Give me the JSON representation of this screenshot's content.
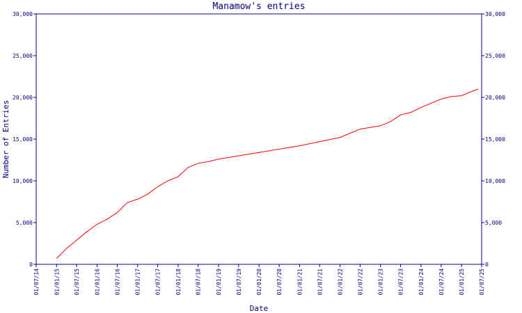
{
  "chart_data": {
    "type": "line",
    "title": "Manamow's entries",
    "xlabel": "Date",
    "ylabel": "Number of Entries",
    "ylim": [
      0,
      30000
    ],
    "y_ticks": [
      0,
      5000,
      10000,
      15000,
      20000,
      25000,
      30000
    ],
    "y_tick_labels": [
      "0",
      "5,000",
      "10,000",
      "15,000",
      "20,000",
      "25,000",
      "30,000"
    ],
    "xlim": [
      "2014-07-01",
      "2025-07-01"
    ],
    "x_ticks": [
      "2014-07-01",
      "2015-01-01",
      "2015-07-01",
      "2016-01-01",
      "2016-07-01",
      "2017-01-01",
      "2017-07-01",
      "2018-01-01",
      "2018-07-01",
      "2019-01-01",
      "2019-07-01",
      "2020-01-01",
      "2020-07-01",
      "2021-01-01",
      "2021-07-01",
      "2022-01-01",
      "2022-07-01",
      "2023-01-01",
      "2023-07-01",
      "2024-01-01",
      "2024-07-01",
      "2025-01-01",
      "2025-07-01"
    ],
    "x_tick_labels": [
      "01/07/14",
      "01/01/15",
      "01/07/15",
      "01/01/16",
      "01/07/16",
      "01/01/17",
      "01/07/17",
      "01/01/18",
      "01/07/18",
      "01/01/19",
      "01/07/19",
      "01/01/20",
      "01/07/20",
      "01/01/21",
      "01/07/21",
      "01/01/22",
      "01/07/22",
      "01/01/23",
      "01/07/23",
      "01/01/24",
      "01/07/24",
      "01/01/25",
      "01/07/25"
    ],
    "grid": false,
    "colors": {
      "line": "#ff0000",
      "axis": "#000080",
      "text": "#000080"
    },
    "series": [
      {
        "x": [
          "2015-01-01",
          "2015-04-01",
          "2015-07-01",
          "2015-10-01",
          "2016-01-01",
          "2016-04-01",
          "2016-07-01",
          "2016-10-01",
          "2017-01-01",
          "2017-04-01",
          "2017-07-01",
          "2017-10-01",
          "2018-01-01",
          "2018-04-01",
          "2018-07-01",
          "2018-10-01",
          "2019-01-01",
          "2019-07-01",
          "2020-01-01",
          "2020-07-01",
          "2021-01-01",
          "2021-07-01",
          "2022-01-01",
          "2022-07-01",
          "2023-01-01",
          "2023-04-01",
          "2023-07-01",
          "2023-10-01",
          "2024-01-01",
          "2024-04-01",
          "2024-07-01",
          "2024-10-01",
          "2025-01-01",
          "2025-04-01",
          "2025-06-01"
        ],
        "y": [
          700,
          1900,
          2900,
          3900,
          4800,
          5400,
          6200,
          7400,
          7800,
          8400,
          9300,
          10000,
          10500,
          11600,
          12100,
          12300,
          12600,
          13000,
          13400,
          13800,
          14200,
          14700,
          15200,
          16200,
          16600,
          17100,
          17900,
          18200,
          18800,
          19300,
          19800,
          20100,
          20200,
          20700,
          21000
        ]
      }
    ]
  }
}
